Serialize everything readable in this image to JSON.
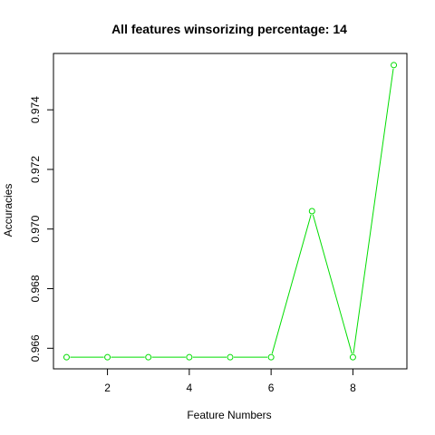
{
  "chart_data": {
    "type": "line",
    "title": "All features winsorizing percentage: 14",
    "xlabel": "Feature Numbers",
    "ylabel": "Accuracies",
    "x": [
      1,
      2,
      3,
      4,
      5,
      6,
      7,
      8,
      9
    ],
    "series": [
      {
        "values": [
          0.9657,
          0.9657,
          0.9657,
          0.9657,
          0.9657,
          0.9657,
          0.9706,
          0.9657,
          0.9755
        ],
        "color": "#00dd00"
      }
    ],
    "xlim": [
      0.68,
      9.32
    ],
    "ylim": [
      0.96531,
      0.97589
    ],
    "x_ticks": [
      2,
      4,
      6,
      8
    ],
    "x_tick_labels": [
      "2",
      "4",
      "6",
      "8"
    ],
    "y_ticks": [
      0.966,
      0.968,
      0.97,
      0.972,
      0.974
    ],
    "y_tick_labels": [
      "0.966",
      "0.968",
      "0.970",
      "0.972",
      "0.974"
    ],
    "grid": false,
    "legend": "none"
  }
}
